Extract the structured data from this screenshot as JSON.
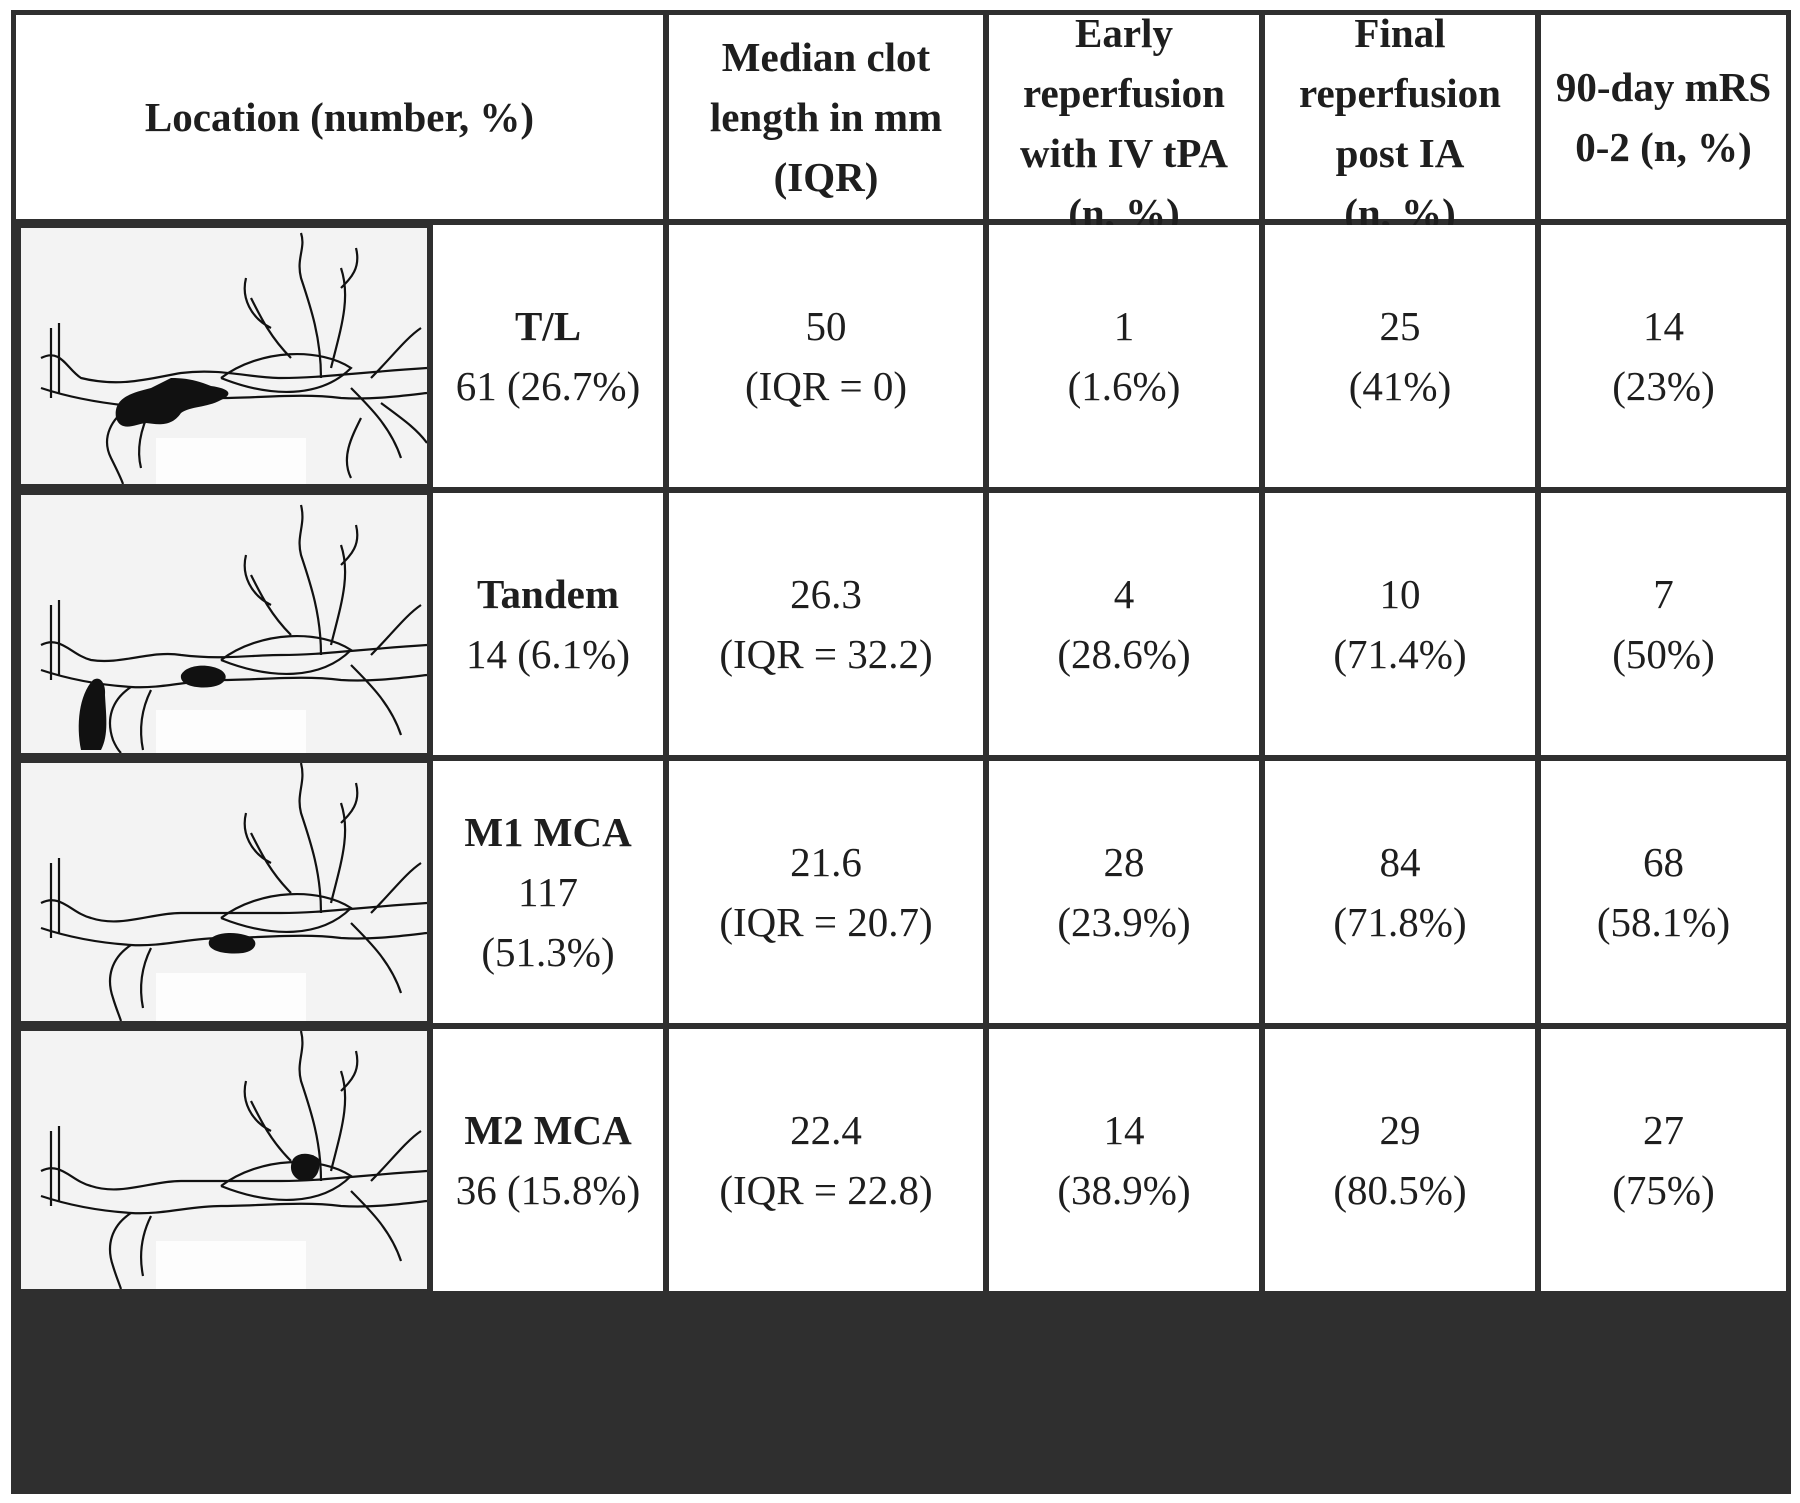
{
  "headers": {
    "location": "Location (number, %)",
    "clot_length": [
      "Median clot",
      "length in mm",
      "(IQR)"
    ],
    "early_reperfusion": [
      "Early",
      "reperfusion",
      "with IV tPA",
      "(n, %)"
    ],
    "final_reperfusion": [
      "Final",
      "reperfusion",
      "post IA",
      "(n, %)"
    ],
    "mrs": [
      "90-day mRS",
      "0-2 (n, %)"
    ]
  },
  "rows": [
    {
      "diagram": "clot-diagram-terminal",
      "location": "T/L",
      "count_lines": [
        "61 (26.7%)"
      ],
      "clot_length": [
        "50",
        "(IQR = 0)"
      ],
      "early_reperfusion": [
        "1",
        "(1.6%)"
      ],
      "final_reperfusion": [
        "25",
        "(41%)"
      ],
      "mrs": [
        "14",
        "(23%)"
      ]
    },
    {
      "diagram": "clot-diagram-tandem",
      "location": "Tandem",
      "count_lines": [
        "14 (6.1%)"
      ],
      "clot_length": [
        "26.3",
        "(IQR = 32.2)"
      ],
      "early_reperfusion": [
        "4",
        "(28.6%)"
      ],
      "final_reperfusion": [
        "10",
        "(71.4%)"
      ],
      "mrs": [
        "7",
        "(50%)"
      ]
    },
    {
      "diagram": "clot-diagram-m1",
      "location": "M1 MCA",
      "count_lines": [
        "117",
        "(51.3%)"
      ],
      "clot_length": [
        "21.6",
        "(IQR = 20.7)"
      ],
      "early_reperfusion": [
        "28",
        "(23.9%)"
      ],
      "final_reperfusion": [
        "84",
        "(71.8%)"
      ],
      "mrs": [
        "68",
        "(58.1%)"
      ]
    },
    {
      "diagram": "clot-diagram-m2",
      "location": "M2 MCA",
      "count_lines": [
        "36 (15.8%)"
      ],
      "clot_length": [
        "22.4",
        "(IQR = 22.8)"
      ],
      "early_reperfusion": [
        "14",
        "(38.9%)"
      ],
      "final_reperfusion": [
        "29",
        "(80.5%)"
      ],
      "mrs": [
        "27",
        "(75%)"
      ]
    }
  ]
}
